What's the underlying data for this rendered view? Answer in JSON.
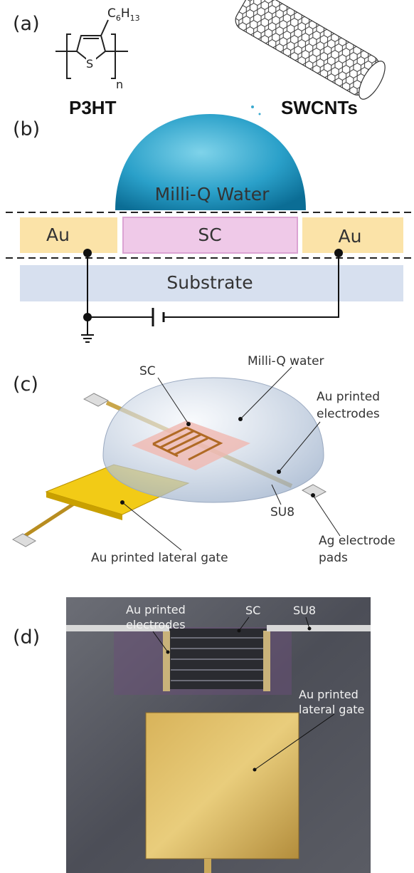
{
  "panel_a": {
    "label": "(a)",
    "p3ht": {
      "substituent": [
        "C",
        "6",
        "H",
        "13"
      ],
      "heteroatom": "S",
      "repeat": "n",
      "name": "P3HT"
    },
    "swcnt": {
      "name": "SWCNTs"
    }
  },
  "panel_b": {
    "label": "(b)",
    "water": "Milli-Q Water",
    "left_electrode": "Au",
    "channel": "SC",
    "right_electrode": "Au",
    "substrate": "Substrate"
  },
  "panel_c": {
    "label": "(c)",
    "sc": "SC",
    "water": "Milli-Q water",
    "electrodes": [
      "Au printed",
      "electrodes"
    ],
    "su8": "SU8",
    "pads": [
      "Ag electrode",
      "pads"
    ],
    "gate": "Au printed lateral gate"
  },
  "panel_d": {
    "label": "(d)",
    "electrodes": [
      "Au printed",
      "electrodes"
    ],
    "sc": "SC",
    "su8": "SU8",
    "gate": [
      "Au printed",
      "lateral gate"
    ]
  }
}
